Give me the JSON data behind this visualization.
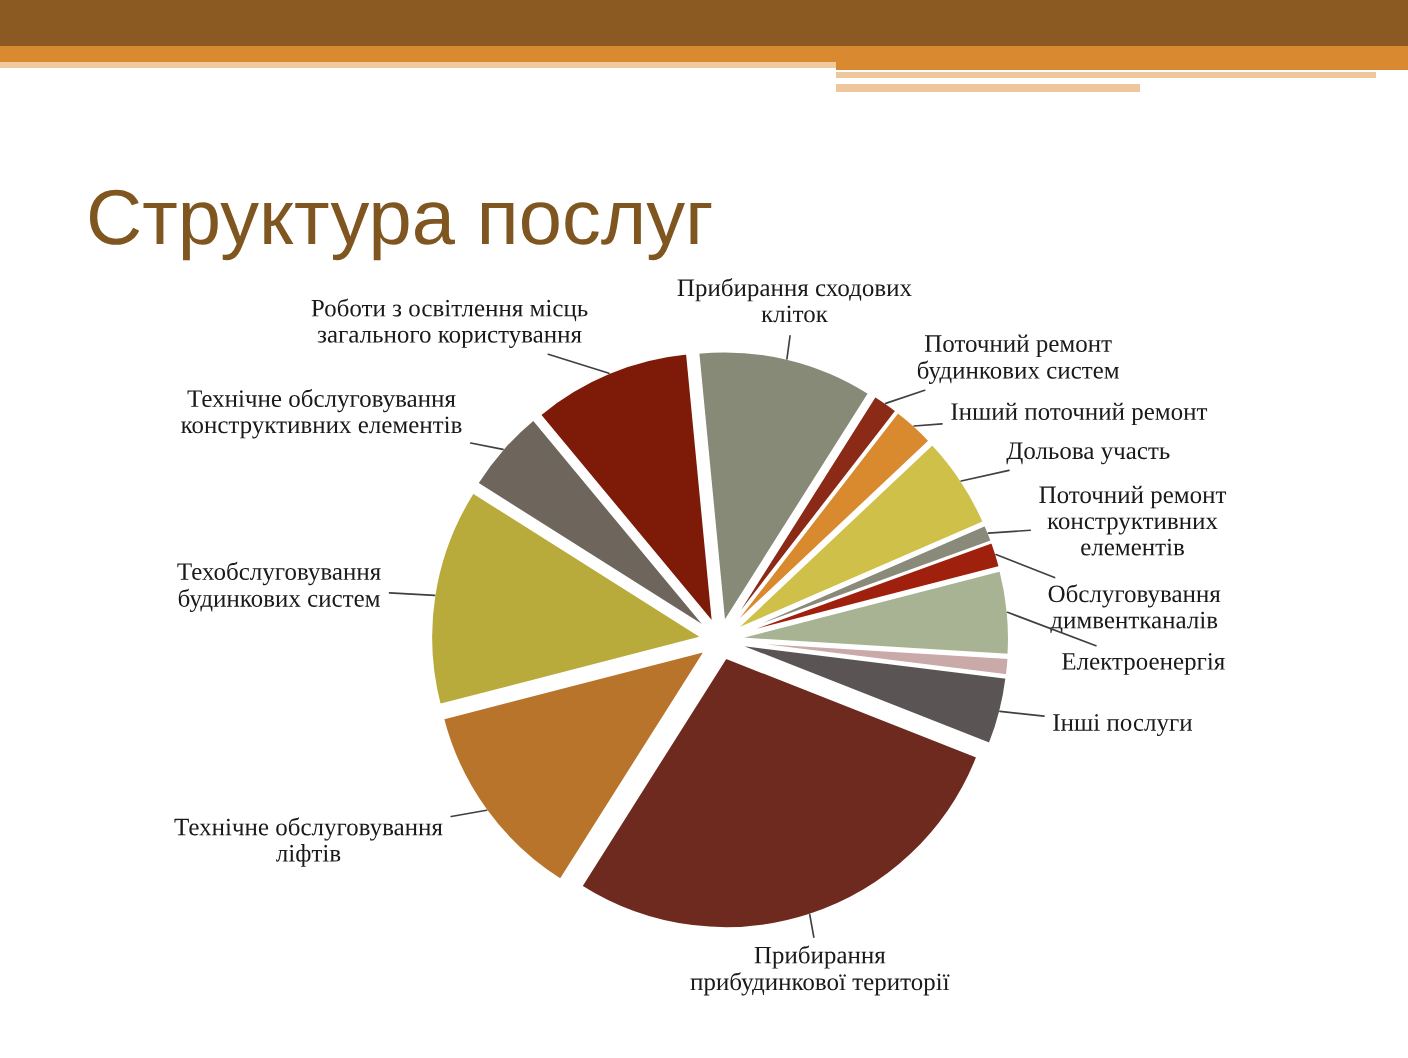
{
  "chart_data": {
    "type": "pie",
    "title": "Структура послуг",
    "categories": [
      "Прибирання сходових\nкліток",
      "Поточний ремонт\nбудинкових систем",
      "Інший поточний ремонт",
      "Дольова участь",
      "Поточний ремонт\nконструктивних\nелементів",
      "Обслуговування\nдимвентканалів",
      "Електроенергія",
      null,
      "Інші послуги",
      "Прибирання\nприбудинкової території",
      "Технічне обслуговування\nліфтів",
      "Техобслуговування\nбудинкових систем",
      "Технічне обслуговування\nконструктивних елементів",
      "Роботи з освітлення місць\nзагального користування"
    ],
    "values": [
      10.5,
      1.5,
      2.5,
      5.5,
      1,
      1.5,
      5,
      1,
      4,
      28,
      12,
      13,
      5,
      9.5
    ],
    "colors": [
      "#868a76",
      "#8b2a16",
      "#d9892e",
      "#cfc04a",
      "#8a8a7a",
      "#a0200e",
      "#a7b393",
      "#c9aaa8",
      "#5b5454",
      "#6e2a1e",
      "#b8742a",
      "#b9aa3c",
      "#6e665c",
      "#7e1a08"
    ]
  }
}
